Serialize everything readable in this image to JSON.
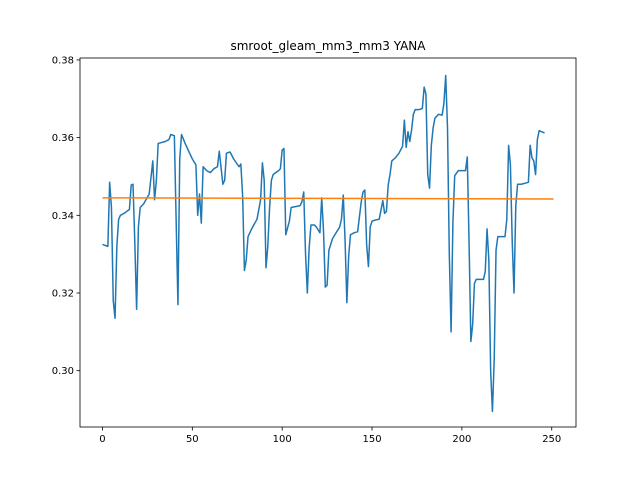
{
  "chart_data": {
    "type": "line",
    "title": "smroot_gleam_mm3_mm3 YANA",
    "xlabel": "",
    "ylabel": "",
    "xlim": [
      -12.5,
      263.5
    ],
    "ylim": [
      0.2855,
      0.3805
    ],
    "xticks": [
      0,
      50,
      100,
      150,
      200,
      250
    ],
    "yticks": [
      0.3,
      0.32,
      0.34,
      0.36,
      0.38
    ],
    "ytick_labels": [
      "0.30",
      "0.32",
      "0.34",
      "0.36",
      "0.38"
    ],
    "grid": false,
    "series": [
      {
        "color": "#1f77b4",
        "points": [
          [
            0,
            0.3325
          ],
          [
            3,
            0.332
          ],
          [
            4,
            0.3485
          ],
          [
            5,
            0.342
          ],
          [
            6,
            0.318
          ],
          [
            7,
            0.3135
          ],
          [
            8,
            0.332
          ],
          [
            9,
            0.339
          ],
          [
            10,
            0.34
          ],
          [
            12,
            0.3405
          ],
          [
            15,
            0.3415
          ],
          [
            16,
            0.3478
          ],
          [
            17,
            0.348
          ],
          [
            18,
            0.333
          ],
          [
            19,
            0.3158
          ],
          [
            20,
            0.337
          ],
          [
            21,
            0.342
          ],
          [
            23,
            0.343
          ],
          [
            26,
            0.3455
          ],
          [
            28,
            0.354
          ],
          [
            29,
            0.344
          ],
          [
            30,
            0.349
          ],
          [
            31,
            0.3585
          ],
          [
            35,
            0.359
          ],
          [
            37,
            0.3595
          ],
          [
            38,
            0.3608
          ],
          [
            40,
            0.3605
          ],
          [
            42,
            0.317
          ],
          [
            43,
            0.3545
          ],
          [
            44,
            0.3608
          ],
          [
            46,
            0.3585
          ],
          [
            48,
            0.3565
          ],
          [
            50,
            0.3545
          ],
          [
            52,
            0.353
          ],
          [
            53,
            0.34
          ],
          [
            54,
            0.3455
          ],
          [
            55,
            0.338
          ],
          [
            56,
            0.3525
          ],
          [
            58,
            0.3515
          ],
          [
            60,
            0.351
          ],
          [
            62,
            0.352
          ],
          [
            64,
            0.3525
          ],
          [
            65,
            0.3565
          ],
          [
            67,
            0.348
          ],
          [
            68,
            0.349
          ],
          [
            69,
            0.356
          ],
          [
            71,
            0.3563
          ],
          [
            73,
            0.3545
          ],
          [
            76,
            0.3525
          ],
          [
            77,
            0.3532
          ],
          [
            78,
            0.345
          ],
          [
            79,
            0.3258
          ],
          [
            80,
            0.3285
          ],
          [
            81,
            0.3345
          ],
          [
            83,
            0.3365
          ],
          [
            86,
            0.339
          ],
          [
            88,
            0.344
          ],
          [
            89,
            0.3535
          ],
          [
            90,
            0.349
          ],
          [
            91,
            0.3265
          ],
          [
            92,
            0.332
          ],
          [
            93,
            0.342
          ],
          [
            94,
            0.349
          ],
          [
            95,
            0.3505
          ],
          [
            98,
            0.3515
          ],
          [
            99,
            0.352
          ],
          [
            100,
            0.3568
          ],
          [
            101,
            0.3572
          ],
          [
            102,
            0.335
          ],
          [
            104,
            0.3385
          ],
          [
            105,
            0.342
          ],
          [
            110,
            0.3425
          ],
          [
            111,
            0.3435
          ],
          [
            112,
            0.346
          ],
          [
            113,
            0.33
          ],
          [
            114,
            0.32
          ],
          [
            115,
            0.3315
          ],
          [
            116,
            0.3375
          ],
          [
            118,
            0.3375
          ],
          [
            119,
            0.337
          ],
          [
            121,
            0.3355
          ],
          [
            122,
            0.3445
          ],
          [
            123,
            0.336
          ],
          [
            124,
            0.3215
          ],
          [
            125,
            0.322
          ],
          [
            126,
            0.331
          ],
          [
            128,
            0.334
          ],
          [
            130,
            0.3355
          ],
          [
            132,
            0.337
          ],
          [
            133,
            0.339
          ],
          [
            134,
            0.3452
          ],
          [
            135,
            0.3335
          ],
          [
            136,
            0.3175
          ],
          [
            137,
            0.3295
          ],
          [
            138,
            0.335
          ],
          [
            140,
            0.3355
          ],
          [
            142,
            0.3358
          ],
          [
            144,
            0.3435
          ],
          [
            145,
            0.346
          ],
          [
            146,
            0.3465
          ],
          [
            147,
            0.3325
          ],
          [
            148,
            0.3268
          ],
          [
            149,
            0.337
          ],
          [
            150,
            0.3385
          ],
          [
            152,
            0.3388
          ],
          [
            154,
            0.339
          ],
          [
            156,
            0.3438
          ],
          [
            157,
            0.3405
          ],
          [
            158,
            0.341
          ],
          [
            159,
            0.3478
          ],
          [
            160,
            0.3505
          ],
          [
            161,
            0.354
          ],
          [
            163,
            0.3548
          ],
          [
            165,
            0.356
          ],
          [
            167,
            0.3578
          ],
          [
            168,
            0.3645
          ],
          [
            169,
            0.3575
          ],
          [
            170,
            0.3615
          ],
          [
            171,
            0.359
          ],
          [
            172,
            0.362
          ],
          [
            173,
            0.366
          ],
          [
            174,
            0.3672
          ],
          [
            176,
            0.3672
          ],
          [
            178,
            0.3675
          ],
          [
            179,
            0.373
          ],
          [
            180,
            0.3712
          ],
          [
            181,
            0.3505
          ],
          [
            182,
            0.347
          ],
          [
            183,
            0.358
          ],
          [
            184,
            0.3625
          ],
          [
            185,
            0.365
          ],
          [
            187,
            0.366
          ],
          [
            189,
            0.3658
          ],
          [
            190,
            0.3688
          ],
          [
            191,
            0.376
          ],
          [
            192,
            0.3625
          ],
          [
            193,
            0.33
          ],
          [
            194,
            0.31
          ],
          [
            195,
            0.338
          ],
          [
            196,
            0.3502
          ],
          [
            198,
            0.3515
          ],
          [
            202,
            0.3515
          ],
          [
            203,
            0.355
          ],
          [
            204,
            0.333
          ],
          [
            205,
            0.3075
          ],
          [
            206,
            0.312
          ],
          [
            207,
            0.3225
          ],
          [
            208,
            0.3235
          ],
          [
            212,
            0.3235
          ],
          [
            213,
            0.3255
          ],
          [
            214,
            0.3365
          ],
          [
            215,
            0.3285
          ],
          [
            216,
            0.3
          ],
          [
            217,
            0.2895
          ],
          [
            218,
            0.303
          ],
          [
            219,
            0.331
          ],
          [
            220,
            0.3345
          ],
          [
            224,
            0.3345
          ],
          [
            225,
            0.339
          ],
          [
            226,
            0.358
          ],
          [
            227,
            0.353
          ],
          [
            228,
            0.3335
          ],
          [
            229,
            0.32
          ],
          [
            230,
            0.3425
          ],
          [
            231,
            0.348
          ],
          [
            233,
            0.348
          ],
          [
            237,
            0.3485
          ],
          [
            238,
            0.358
          ],
          [
            239,
            0.3548
          ],
          [
            240,
            0.354
          ],
          [
            241,
            0.3505
          ],
          [
            242,
            0.3595
          ],
          [
            243,
            0.3618
          ],
          [
            246,
            0.3612
          ]
        ]
      },
      {
        "color": "#ff7f0e",
        "points": [
          [
            0,
            0.3445
          ],
          [
            251,
            0.3442
          ]
        ]
      }
    ]
  }
}
